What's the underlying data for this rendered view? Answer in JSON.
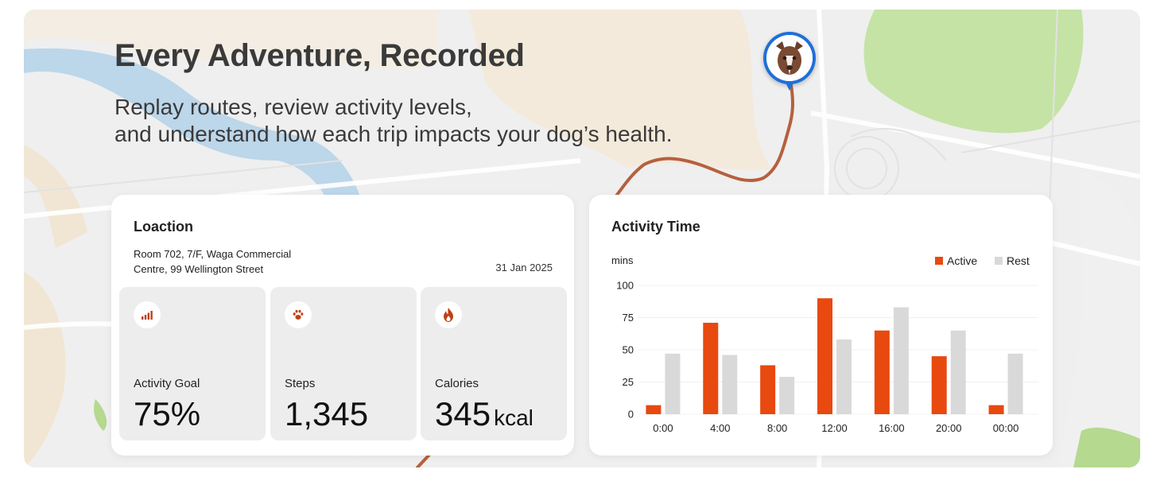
{
  "hero": {
    "title": "Every Adventure, Recorded",
    "subtitle_line1": "Replay routes, review activity levels,",
    "subtitle_line2": "and understand how each trip impacts your dog’s health."
  },
  "colors": {
    "accent": "#e8490f",
    "rest": "#d9d9d9",
    "pin": "#1e6fd9",
    "route": "#b5603e"
  },
  "location_card": {
    "title": "Loaction",
    "address_line1": "Room 702, 7/F, Waga Commercial",
    "address_line2": "Centre, 99 Wellington Street",
    "date": "31 Jan 2025",
    "tiles": [
      {
        "icon": "signal-bars-icon",
        "label": "Activity Goal",
        "value": "75%",
        "unit": ""
      },
      {
        "icon": "paw-icon",
        "label": "Steps",
        "value": "1,345",
        "unit": ""
      },
      {
        "icon": "flame-icon",
        "label": "Calories",
        "value": "345",
        "unit": "kcal"
      }
    ]
  },
  "activity_card": {
    "title": "Activity Time"
  },
  "chart_data": {
    "type": "bar",
    "title": "",
    "ylabel": "mins",
    "xlabel": "",
    "ylim": [
      0,
      100
    ],
    "yticks": [
      0,
      25,
      50,
      75,
      100
    ],
    "categories": [
      "0:00",
      "4:00",
      "8:00",
      "12:00",
      "16:00",
      "20:00",
      "00:00"
    ],
    "series": [
      {
        "name": "Active",
        "color": "#e8490f",
        "values": [
          7,
          71,
          38,
          90,
          65,
          45,
          7
        ]
      },
      {
        "name": "Rest",
        "color": "#d9d9d9",
        "values": [
          47,
          46,
          29,
          58,
          83,
          65,
          47
        ]
      }
    ],
    "legend": "top-right",
    "grid": true
  }
}
